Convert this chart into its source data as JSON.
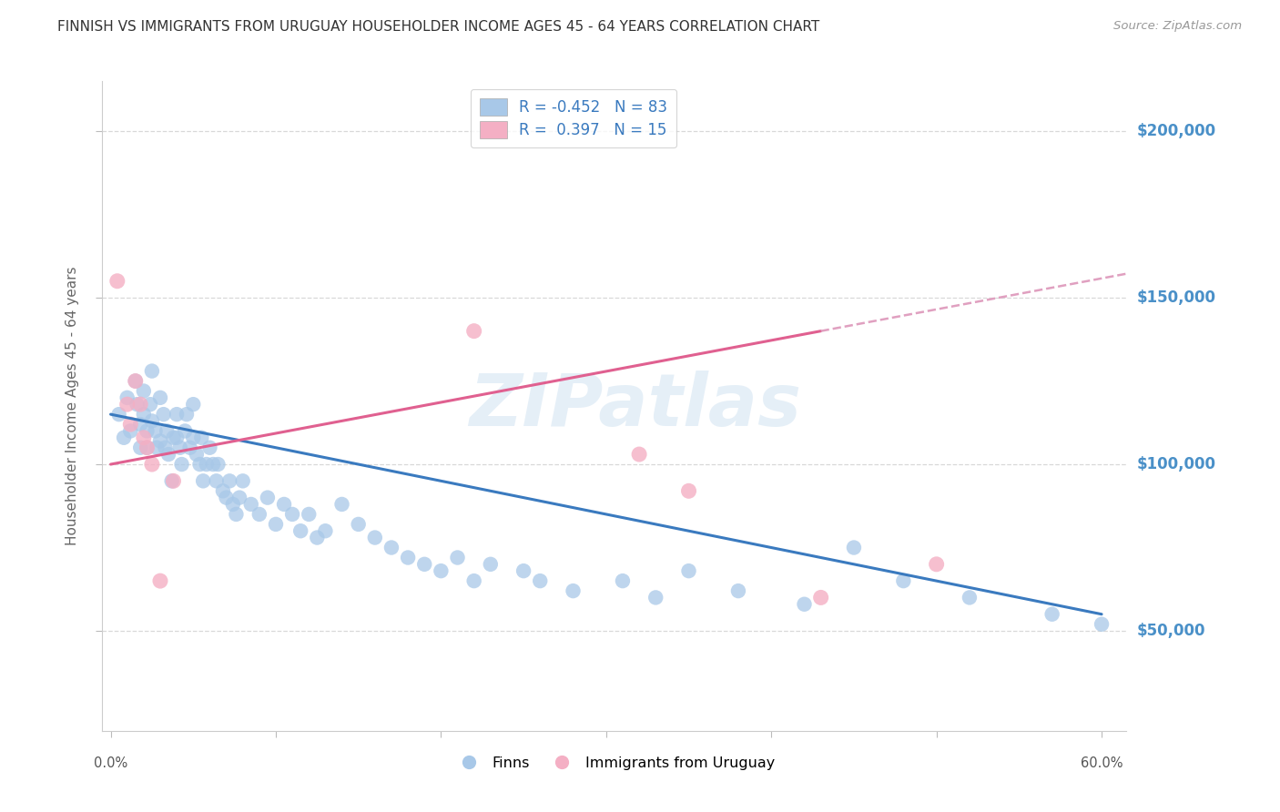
{
  "title": "FINNISH VS IMMIGRANTS FROM URUGUAY HOUSEHOLDER INCOME AGES 45 - 64 YEARS CORRELATION CHART",
  "source": "Source: ZipAtlas.com",
  "ylabel": "Householder Income Ages 45 - 64 years",
  "ytick_labels": [
    "$50,000",
    "$100,000",
    "$150,000",
    "$200,000"
  ],
  "ytick_values": [
    50000,
    100000,
    150000,
    200000
  ],
  "ylim": [
    20000,
    215000
  ],
  "xlim": [
    -0.005,
    0.615
  ],
  "r_finns": -0.452,
  "n_finns": 83,
  "r_uruguay": 0.397,
  "n_uruguay": 15,
  "blue_color": "#a8c8e8",
  "pink_color": "#f4afc4",
  "trend_blue": "#3a7abf",
  "trend_pink": "#e06090",
  "trend_pink_dash": "#e0a0c0",
  "finns_x": [
    0.005,
    0.008,
    0.01,
    0.012,
    0.015,
    0.016,
    0.018,
    0.018,
    0.02,
    0.02,
    0.022,
    0.022,
    0.024,
    0.025,
    0.025,
    0.027,
    0.028,
    0.03,
    0.03,
    0.032,
    0.033,
    0.034,
    0.035,
    0.037,
    0.038,
    0.04,
    0.04,
    0.042,
    0.043,
    0.045,
    0.046,
    0.048,
    0.05,
    0.05,
    0.052,
    0.054,
    0.055,
    0.056,
    0.058,
    0.06,
    0.062,
    0.064,
    0.065,
    0.068,
    0.07,
    0.072,
    0.074,
    0.076,
    0.078,
    0.08,
    0.085,
    0.09,
    0.095,
    0.1,
    0.105,
    0.11,
    0.115,
    0.12,
    0.125,
    0.13,
    0.14,
    0.15,
    0.16,
    0.17,
    0.18,
    0.19,
    0.2,
    0.21,
    0.22,
    0.23,
    0.25,
    0.26,
    0.28,
    0.31,
    0.33,
    0.35,
    0.38,
    0.42,
    0.45,
    0.48,
    0.52,
    0.57,
    0.6
  ],
  "finns_y": [
    115000,
    108000,
    120000,
    110000,
    125000,
    118000,
    112000,
    105000,
    122000,
    115000,
    110000,
    105000,
    118000,
    128000,
    113000,
    110000,
    105000,
    120000,
    107000,
    115000,
    105000,
    110000,
    103000,
    95000,
    108000,
    115000,
    108000,
    105000,
    100000,
    110000,
    115000,
    105000,
    118000,
    108000,
    103000,
    100000,
    108000,
    95000,
    100000,
    105000,
    100000,
    95000,
    100000,
    92000,
    90000,
    95000,
    88000,
    85000,
    90000,
    95000,
    88000,
    85000,
    90000,
    82000,
    88000,
    85000,
    80000,
    85000,
    78000,
    80000,
    88000,
    82000,
    78000,
    75000,
    72000,
    70000,
    68000,
    72000,
    65000,
    70000,
    68000,
    65000,
    62000,
    65000,
    60000,
    68000,
    62000,
    58000,
    75000,
    65000,
    60000,
    55000,
    52000
  ],
  "uruguay_x": [
    0.004,
    0.01,
    0.012,
    0.015,
    0.018,
    0.02,
    0.022,
    0.025,
    0.03,
    0.038,
    0.22,
    0.32,
    0.35,
    0.43,
    0.5
  ],
  "uruguay_y": [
    155000,
    118000,
    112000,
    125000,
    118000,
    108000,
    105000,
    100000,
    65000,
    95000,
    140000,
    103000,
    92000,
    60000,
    70000
  ],
  "watermark": "ZIPatlas",
  "legend_line1": "R = -0.452   N = 83",
  "legend_line2": "R =  0.397   N = 15",
  "background_color": "#ffffff",
  "grid_color": "#d8d8d8",
  "label_finns": "Finns",
  "label_uruguay": "Immigrants from Uruguay"
}
